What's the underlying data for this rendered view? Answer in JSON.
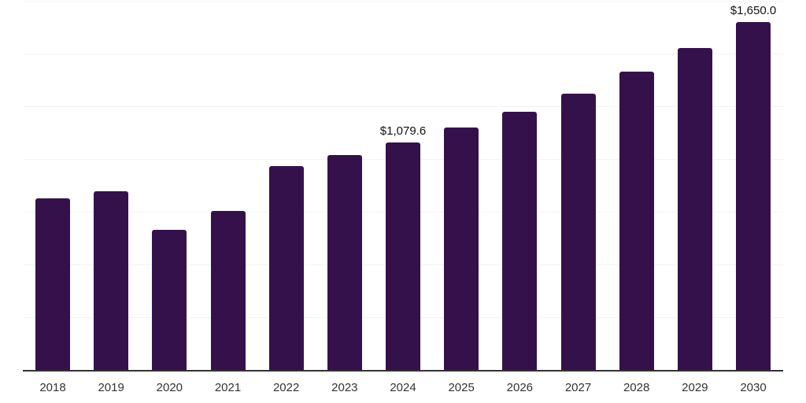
{
  "chart_data": {
    "type": "bar",
    "title": "",
    "xlabel": "",
    "ylabel": "",
    "categories": [
      "2018",
      "2019",
      "2020",
      "2021",
      "2022",
      "2023",
      "2024",
      "2025",
      "2026",
      "2027",
      "2028",
      "2029",
      "2030"
    ],
    "values": [
      815,
      848,
      665,
      752,
      965,
      1019,
      1079.6,
      1148,
      1225,
      1311,
      1415,
      1525,
      1650
    ],
    "data_labels": {
      "2024": "$1,079.6",
      "2030": "$1,650.0"
    },
    "ylim": [
      0,
      1750
    ],
    "grid_interval": 250,
    "grid": true,
    "legend": false,
    "y_axis_labels_visible": false,
    "bar_color": "#35114c",
    "axis_color": "#333333",
    "gridline_color": "#f2f2f2",
    "value_label_color": "#111111",
    "tick_label_color": "#333333",
    "background_color": "#ffffff"
  }
}
